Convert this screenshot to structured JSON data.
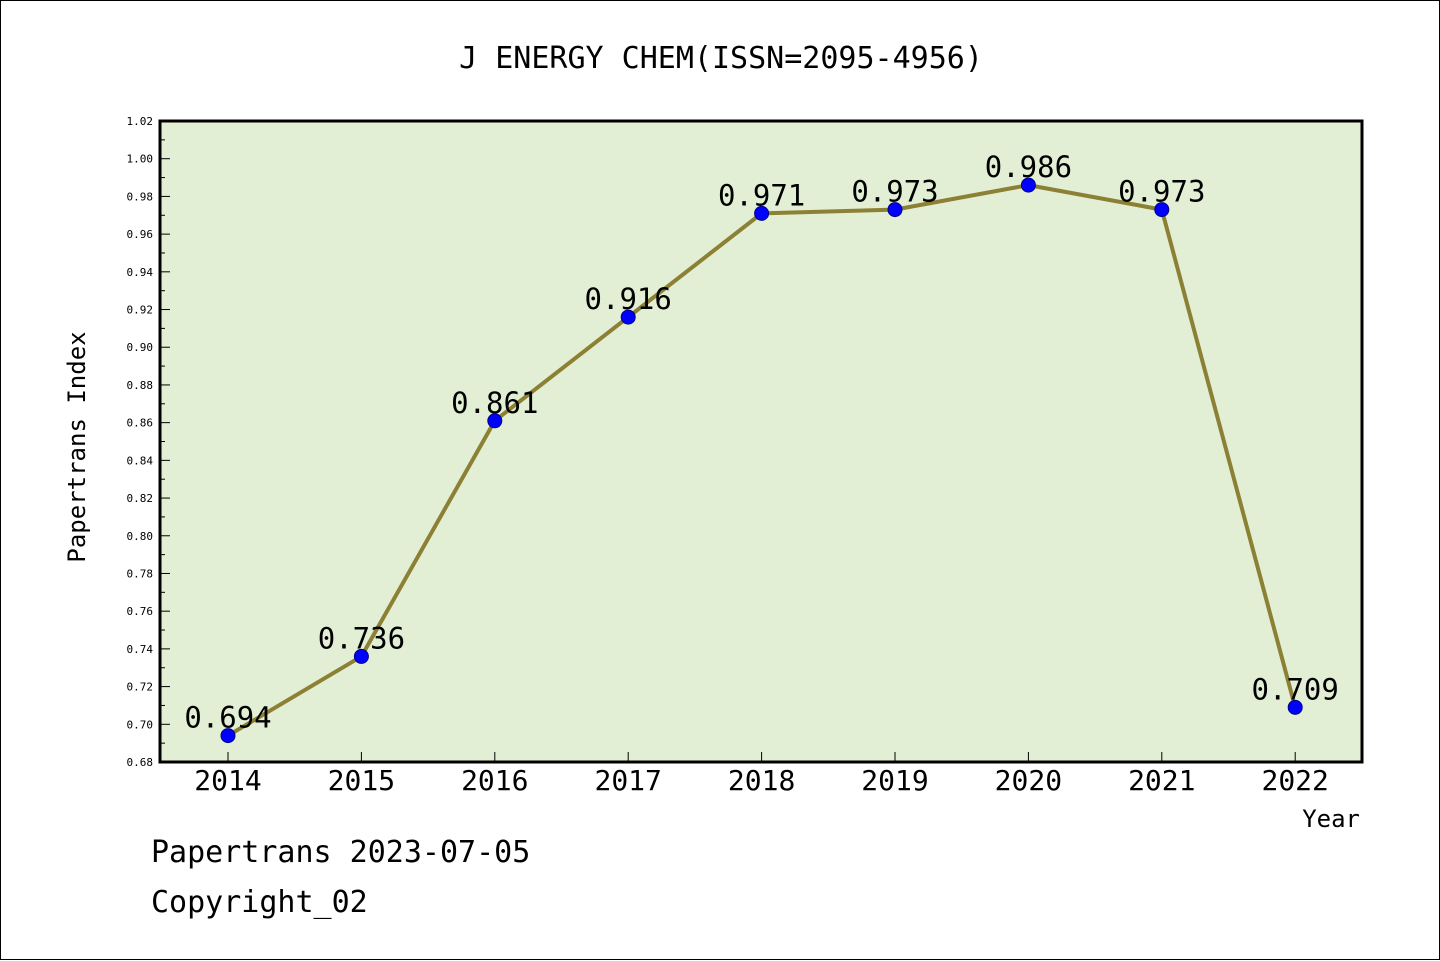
{
  "chart_data": {
    "type": "line",
    "title": "J ENERGY CHEM(ISSN=2095-4956)",
    "xlabel": "Year",
    "ylabel": "Papertrans Index",
    "categories": [
      "2014",
      "2015",
      "2016",
      "2017",
      "2018",
      "2019",
      "2020",
      "2021",
      "2022"
    ],
    "values": [
      0.694,
      0.736,
      0.861,
      0.916,
      0.971,
      0.973,
      0.986,
      0.973,
      0.709
    ],
    "data_labels": [
      "0.694",
      "0.736",
      "0.861",
      "0.916",
      "0.971",
      "0.973",
      "0.986",
      "0.973",
      "0.709"
    ],
    "ylim": [
      0.68,
      1.02
    ],
    "yticks": [
      "0.68",
      "0.70",
      "0.72",
      "0.74",
      "0.76",
      "0.78",
      "0.80",
      "0.82",
      "0.84",
      "0.86",
      "0.88",
      "0.90",
      "0.92",
      "0.94",
      "0.96",
      "0.98",
      "1.00",
      "1.02"
    ],
    "grid": false,
    "colors": {
      "plot_background": "#e2efd4",
      "line": "#8c8035",
      "marker": "#0000ff"
    }
  },
  "footer": {
    "date_line": "Papertrans 2023-07-05",
    "copyright": "Copyright_02"
  }
}
